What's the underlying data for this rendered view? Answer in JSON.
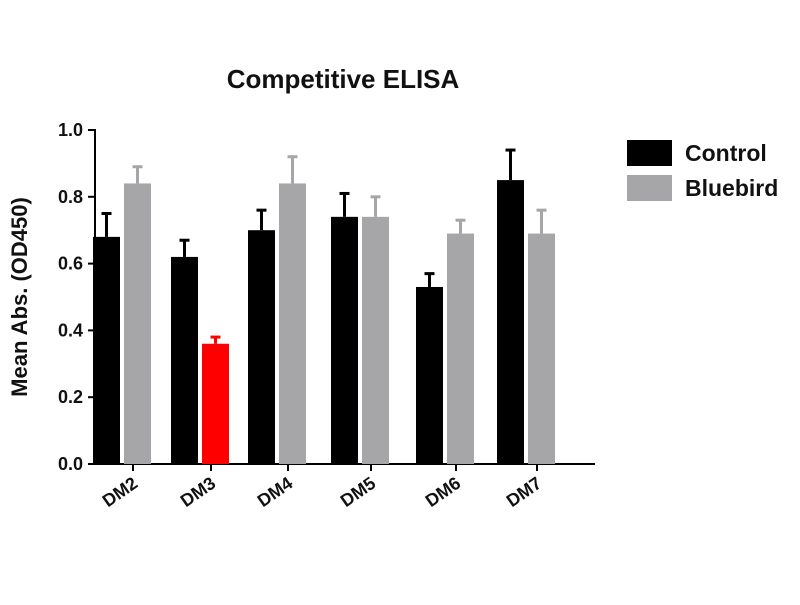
{
  "chart_data": {
    "type": "bar",
    "title": "Competitive ELISA",
    "xlabel": "",
    "ylabel": "Mean Abs. (OD450)",
    "ylim": [
      0,
      1.0
    ],
    "yticks": [
      "0.0",
      "0.2",
      "0.4",
      "0.6",
      "0.8",
      "1.0"
    ],
    "ytick_values": [
      0,
      0.2,
      0.4,
      0.6,
      0.8,
      1.0
    ],
    "categories": [
      "DM2",
      "DM3",
      "DM4",
      "DM5",
      "DM6",
      "DM7"
    ],
    "series": [
      {
        "name": "Control",
        "color": "#000000",
        "values": [
          0.68,
          0.62,
          0.7,
          0.74,
          0.53,
          0.85
        ],
        "errors": [
          0.07,
          0.05,
          0.06,
          0.07,
          0.04,
          0.09
        ]
      },
      {
        "name": "Bluebird",
        "color": "#a6a6a8",
        "values": [
          0.84,
          0.36,
          0.84,
          0.74,
          0.69,
          0.69
        ],
        "errors": [
          0.05,
          0.02,
          0.08,
          0.06,
          0.04,
          0.07
        ],
        "highlight": {
          "index": 1,
          "color": "#ff0000"
        }
      }
    ],
    "grid": false,
    "legend": "right"
  }
}
